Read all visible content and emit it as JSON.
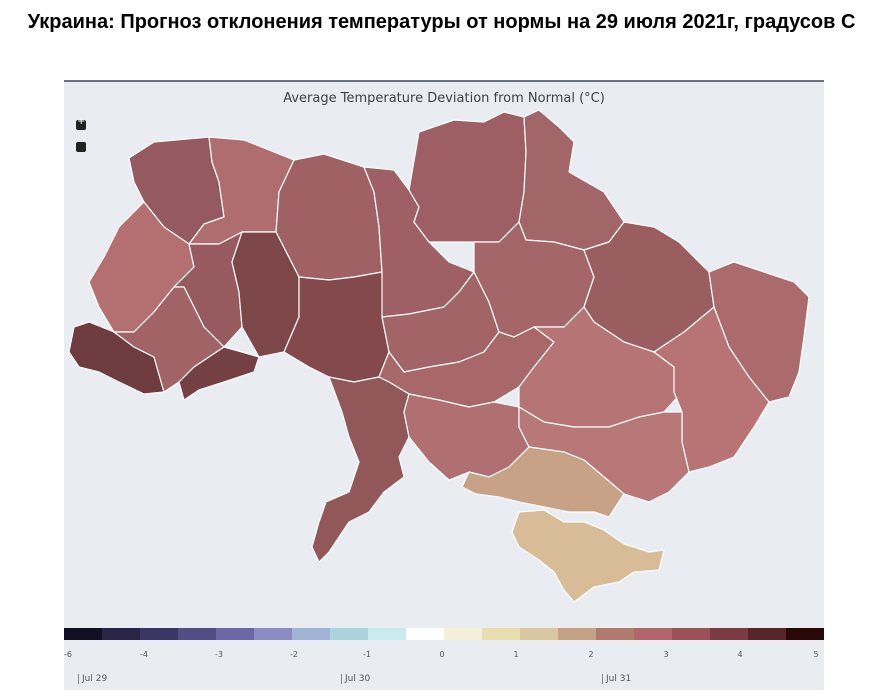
{
  "page_title": "Украина: Прогноз отклонения температуры от нормы на 29 июля 2021г, градусов С",
  "map": {
    "title": "Average Temperature Deviation from Normal (°C)",
    "zoom_in_icon": "plus-icon",
    "zoom_out_icon": "minus-icon"
  },
  "legend": {
    "ticks": [
      "-6",
      "-4",
      "-3",
      "-2",
      "-1",
      "0",
      "1",
      "2",
      "3",
      "4",
      "5"
    ],
    "colors": [
      "#130f25",
      "#2a2547",
      "#3c3666",
      "#534d86",
      "#6c67a6",
      "#8c8cc2",
      "#9fb4d6",
      "#a9d4dc",
      "#c8ecee",
      "#ffffff",
      "#f3efd9",
      "#e8dfae",
      "#dbc79f",
      "#c6a285",
      "#b07a6e",
      "#b0666a",
      "#9a5257",
      "#7a3c41",
      "#5a2528",
      "#2b0808"
    ],
    "times": [
      "Jul 29",
      "Jul 30",
      "Jul 31"
    ]
  },
  "regions": [
    {
      "name": "volyn",
      "value": 4.2,
      "color": "#945a5f"
    },
    {
      "name": "rivne",
      "value": 3.2,
      "color": "#b06d6f"
    },
    {
      "name": "zhytomyr",
      "value": 3.7,
      "color": "#a06165"
    },
    {
      "name": "kyiv",
      "value": 3.8,
      "color": "#9e6064"
    },
    {
      "name": "chernihiv",
      "value": 3.8,
      "color": "#9d5f63"
    },
    {
      "name": "sumy",
      "value": 3.7,
      "color": "#a26568"
    },
    {
      "name": "lviv",
      "value": 2.9,
      "color": "#b46f70"
    },
    {
      "name": "ternopil",
      "value": 4.0,
      "color": "#975b5f"
    },
    {
      "name": "khmelnytskyi",
      "value": 4.8,
      "color": "#7d4649"
    },
    {
      "name": "vinnytsia",
      "value": 4.5,
      "color": "#83494c"
    },
    {
      "name": "cherkasy",
      "value": 3.6,
      "color": "#a36467"
    },
    {
      "name": "poltava",
      "value": 3.6,
      "color": "#a46669"
    },
    {
      "name": "kharkiv",
      "value": 4.0,
      "color": "#9a5d60"
    },
    {
      "name": "luhansk",
      "value": 3.4,
      "color": "#ab6a6c"
    },
    {
      "name": "zakarpattia",
      "value": 5.2,
      "color": "#6e3b3e"
    },
    {
      "name": "ivano-frankivsk",
      "value": 3.7,
      "color": "#a16366"
    },
    {
      "name": "chernivtsi",
      "value": 4.9,
      "color": "#744043"
    },
    {
      "name": "kirovohrad",
      "value": 3.4,
      "color": "#a86869"
    },
    {
      "name": "dnipropetrovsk",
      "value": 3.0,
      "color": "#b67475"
    },
    {
      "name": "donetsk",
      "value": 3.0,
      "color": "#b87375"
    },
    {
      "name": "odesa",
      "value": 4.1,
      "color": "#915759"
    },
    {
      "name": "mykolaiv",
      "value": 3.2,
      "color": "#b07072"
    },
    {
      "name": "zaporizhzhia",
      "value": 3.0,
      "color": "#b87878"
    },
    {
      "name": "kherson",
      "value": 2.3,
      "color": "#c8a286"
    },
    {
      "name": "crimea",
      "value": 2.1,
      "color": "#d8bc97"
    }
  ]
}
